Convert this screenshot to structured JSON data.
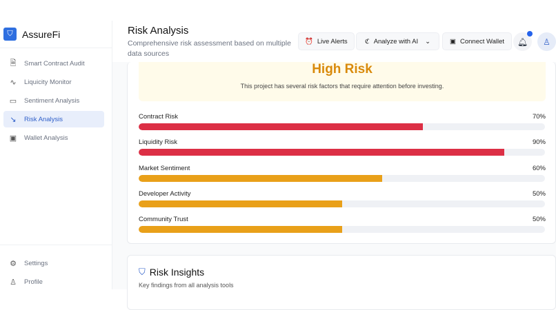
{
  "app": {
    "name": "AssureFi",
    "logo_icon": "shield-icon"
  },
  "sidebar": {
    "items": [
      {
        "label": "Smart Contract Audit",
        "icon": "file-search-icon",
        "active": false
      },
      {
        "label": "Liquicity Monitor",
        "icon": "activity-icon",
        "active": false
      },
      {
        "label": "Sentiment Analysis",
        "icon": "message-square-icon",
        "active": false
      },
      {
        "label": "Risk Analysis",
        "icon": "trending-down-icon",
        "active": true
      },
      {
        "label": "Wallet Analysis",
        "icon": "wallet-icon",
        "active": false
      }
    ],
    "bottom": [
      {
        "label": "Settings",
        "icon": "gear-icon"
      },
      {
        "label": "Profile",
        "icon": "user-icon"
      }
    ]
  },
  "header": {
    "title": "Risk Analysis",
    "subtitle": "Comprehensive risk assessment based on multiple data sources",
    "live_alerts": "Live Alerts",
    "analyze": "Analyze with AI",
    "connect_wallet": "Connect Wallet"
  },
  "colors": {
    "accent": "#2f6fe0",
    "high": "#dc2f45",
    "medium": "#e9a019",
    "warning": "#d98a0b"
  },
  "risk": {
    "level": "High Risk",
    "description": "This project has several risk factors that require attention before investing.",
    "metrics": [
      {
        "label": "Contract Risk",
        "value": 70,
        "display": "70%",
        "color": "#dc2f45"
      },
      {
        "label": "Liquidity Risk",
        "value": 90,
        "display": "90%",
        "color": "#dc2f45"
      },
      {
        "label": "Market Sentiment",
        "value": 60,
        "display": "60%",
        "color": "#e9a019"
      },
      {
        "label": "Developer Activity",
        "value": 50,
        "display": "50%",
        "color": "#e9a019"
      },
      {
        "label": "Community Trust",
        "value": 50,
        "display": "50%",
        "color": "#e9a019"
      }
    ]
  },
  "insights": {
    "title": "Risk Insights",
    "subtitle": "Key findings from all analysis tools"
  }
}
